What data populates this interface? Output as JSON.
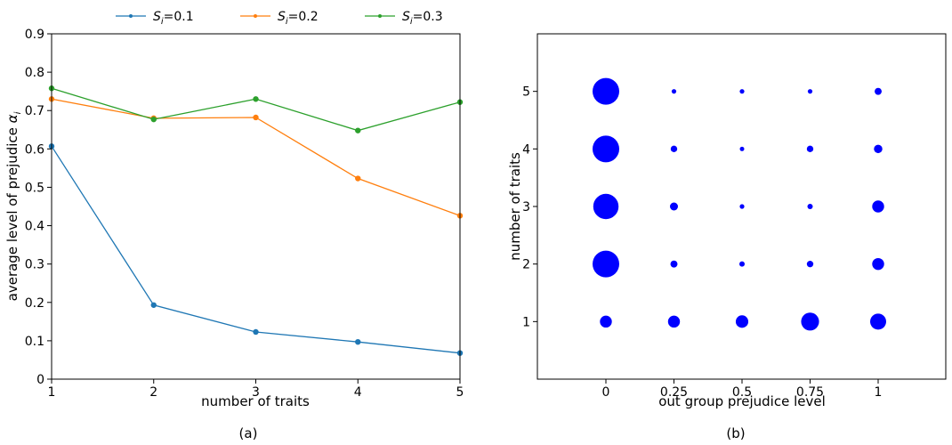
{
  "chart_data": [
    {
      "type": "line",
      "subcaption": "(a)",
      "xlabel": "number of traits",
      "ylabel": "average level of prejudice",
      "ylabel_symbol": "α",
      "ylabel_symbol_sub": "i",
      "x": [
        1,
        2,
        3,
        4,
        5
      ],
      "xticks": [
        "1",
        "2",
        "3",
        "4",
        "5"
      ],
      "yticks": [
        "0",
        "0.1",
        "0.2",
        "0.3",
        "0.4",
        "0.5",
        "0.6",
        "0.7",
        "0.8",
        "0.9"
      ],
      "xlim": [
        1,
        5
      ],
      "ylim": [
        0,
        0.9
      ],
      "grid": false,
      "legend_position": "top-center, above axes",
      "series": [
        {
          "name": "S_i=0.1",
          "name_var": "S",
          "name_sub": "i",
          "name_value": "=0.1",
          "color": "#1f77b4",
          "values": [
            0.607,
            0.193,
            0.123,
            0.097,
            0.068
          ]
        },
        {
          "name": "S_i=0.2",
          "name_var": "S",
          "name_sub": "i",
          "name_value": "=0.2",
          "color": "#ff7f0e",
          "values": [
            0.73,
            0.68,
            0.682,
            0.523,
            0.426
          ]
        },
        {
          "name": "S_i=0.3",
          "name_var": "S",
          "name_sub": "i",
          "name_value": "=0.3",
          "color": "#2ca02c",
          "values": [
            0.758,
            0.677,
            0.73,
            0.648,
            0.722
          ]
        }
      ]
    },
    {
      "type": "scatter",
      "subcaption": "(b)",
      "xlabel": "out group prejudice level",
      "ylabel": "number of traits",
      "xcategories": [
        "0",
        "0.25",
        "0.5",
        "0.75",
        "1"
      ],
      "yticks": [
        "1",
        "2",
        "3",
        "4",
        "5"
      ],
      "ylim": [
        0,
        6
      ],
      "grid": false,
      "marker_color": "#0000ff",
      "points": [
        {
          "x": "0",
          "y": 5,
          "size": 1.0
        },
        {
          "x": "0.25",
          "y": 5,
          "size": 0.03
        },
        {
          "x": "0.5",
          "y": 5,
          "size": 0.03
        },
        {
          "x": "0.75",
          "y": 5,
          "size": 0.03
        },
        {
          "x": "1",
          "y": 5,
          "size": 0.07
        },
        {
          "x": "0",
          "y": 4,
          "size": 1.0
        },
        {
          "x": "0.25",
          "y": 4,
          "size": 0.06
        },
        {
          "x": "0.5",
          "y": 4,
          "size": 0.02
        },
        {
          "x": "0.75",
          "y": 4,
          "size": 0.06
        },
        {
          "x": "1",
          "y": 4,
          "size": 0.1
        },
        {
          "x": "0",
          "y": 3,
          "size": 0.9
        },
        {
          "x": "0.25",
          "y": 3,
          "size": 0.09
        },
        {
          "x": "0.5",
          "y": 3,
          "size": 0.03
        },
        {
          "x": "0.75",
          "y": 3,
          "size": 0.04
        },
        {
          "x": "1",
          "y": 3,
          "size": 0.2
        },
        {
          "x": "0",
          "y": 2,
          "size": 1.0
        },
        {
          "x": "0.25",
          "y": 2,
          "size": 0.07
        },
        {
          "x": "0.5",
          "y": 2,
          "size": 0.04
        },
        {
          "x": "0.75",
          "y": 2,
          "size": 0.06
        },
        {
          "x": "1",
          "y": 2,
          "size": 0.2
        },
        {
          "x": "0",
          "y": 1,
          "size": 0.2
        },
        {
          "x": "0.25",
          "y": 1,
          "size": 0.2
        },
        {
          "x": "0.5",
          "y": 1,
          "size": 0.22
        },
        {
          "x": "0.75",
          "y": 1,
          "size": 0.45
        },
        {
          "x": "1",
          "y": 1,
          "size": 0.36
        }
      ]
    }
  ]
}
